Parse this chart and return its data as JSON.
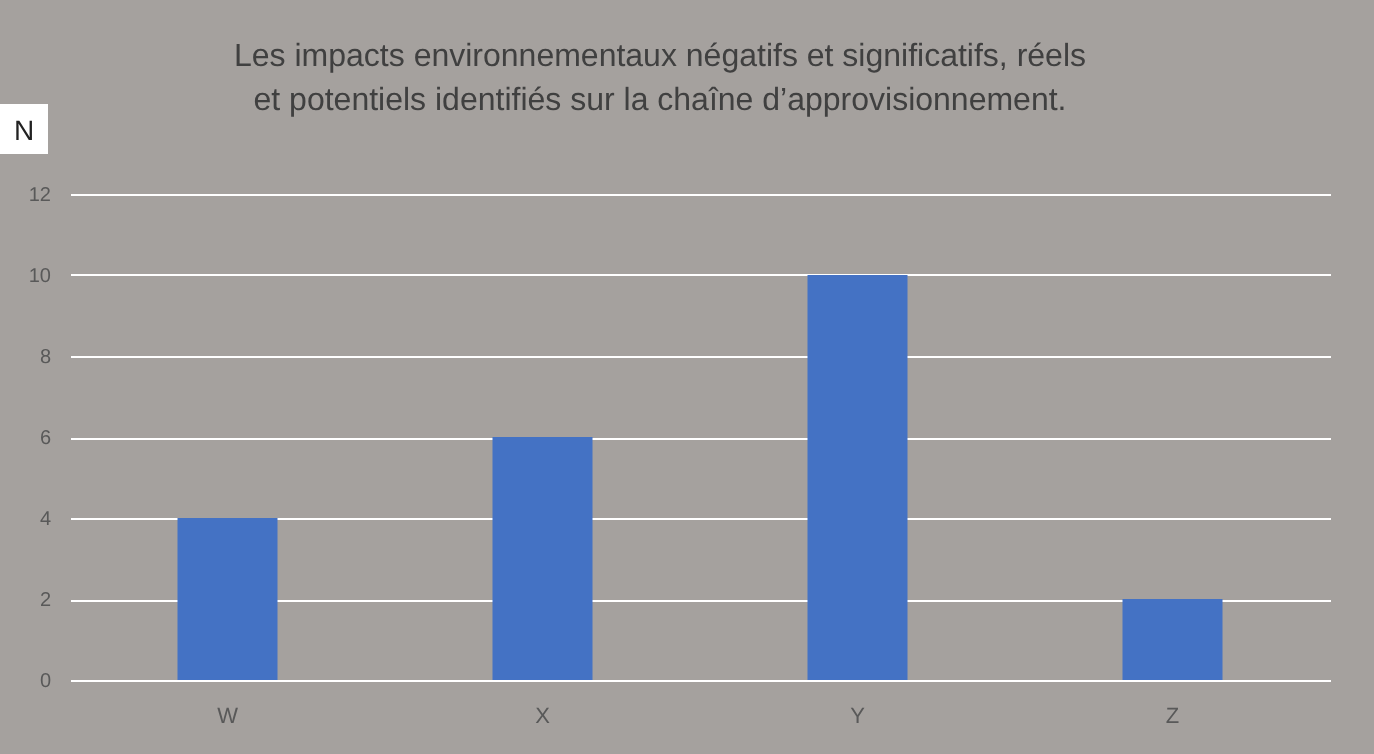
{
  "chart_data": {
    "type": "bar",
    "title": "Les impacts environnementaux négatifs et significatifs, réels et potentiels identifiés sur la chaîne d’approvisionnement.",
    "ylabel": "N",
    "categories": [
      "W",
      "X",
      "Y",
      "Z"
    ],
    "values": [
      4,
      6,
      10,
      2
    ],
    "color": "#4472c4",
    "ylim": [
      0,
      12
    ],
    "yticks": [
      0,
      2,
      4,
      6,
      8,
      10,
      12
    ],
    "grid": true
  }
}
